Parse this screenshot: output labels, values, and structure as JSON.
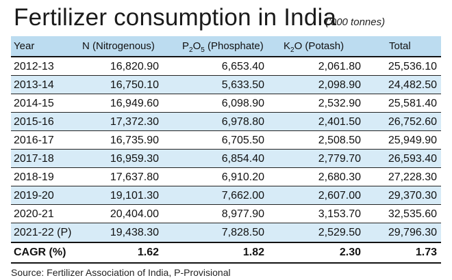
{
  "title": "Fertilizer consumption in India",
  "unit_note": "('000 tonnes)",
  "headers": {
    "year": "Year",
    "n": "N (Nitrogenous)",
    "p_pre": "P",
    "p_sub1": "2",
    "p_mid": "O",
    "p_sub2": "5",
    "p_post": " (Phosphate)",
    "k_pre": "K",
    "k_sub": "2",
    "k_post": "O (Potash)",
    "total": "Total"
  },
  "rows": [
    {
      "year": "2012-13",
      "n": "16,820.90",
      "p": "6,653.40",
      "k": "2,061.80",
      "total": "25,536.10"
    },
    {
      "year": "2013-14",
      "n": "16,750.10",
      "p": "5,633.50",
      "k": "2,098.90",
      "total": "24,482.50"
    },
    {
      "year": "2014-15",
      "n": "16,949.60",
      "p": "6,098.90",
      "k": "2,532.90",
      "total": "25,581.40"
    },
    {
      "year": "2015-16",
      "n": "17,372.30",
      "p": "6,978.80",
      "k": "2,401.50",
      "total": "26,752.60"
    },
    {
      "year": "2016-17",
      "n": "16,735.90",
      "p": "6,705.50",
      "k": "2,508.50",
      "total": "25,949.90"
    },
    {
      "year": "2017-18",
      "n": "16,959.30",
      "p": "6,854.40",
      "k": "2,779.70",
      "total": "26,593.40"
    },
    {
      "year": "2018-19",
      "n": "17,637.80",
      "p": "6,910.20",
      "k": "2,680.30",
      "total": "27,228.30"
    },
    {
      "year": "2019-20",
      "n": "19,101.30",
      "p": "7,662.00",
      "k": "2,607.00",
      "total": "29,370.30"
    },
    {
      "year": "2020-21",
      "n": "20,404.00",
      "p": "8,977.90",
      "k": "3,153.70",
      "total": "32,535.60"
    },
    {
      "year": "2021-22 (P)",
      "n": "19,438.30",
      "p": "7,828.50",
      "k": "2,529.50",
      "total": "29,796.30"
    }
  ],
  "cagr": {
    "label": "CAGR (%)",
    "n": "1.62",
    "p": "1.82",
    "k": "2.30",
    "total": "1.73"
  },
  "source": "Source: Fertilizer Association of India, P-Provisional",
  "colors": {
    "header_bg": "#bcdcf0",
    "shade_bg": "#d7ebf7",
    "rule": "#111111"
  },
  "chart_data": {
    "type": "table",
    "title": "Fertilizer consumption in India",
    "columns": [
      "Year",
      "N (Nitrogenous)",
      "P2O5 (Phosphate)",
      "K2O (Potash)",
      "Total"
    ],
    "rows": [
      [
        "2012-13",
        16820.9,
        6653.4,
        2061.8,
        25536.1
      ],
      [
        "2013-14",
        16750.1,
        5633.5,
        2098.9,
        24482.5
      ],
      [
        "2014-15",
        16949.6,
        6098.9,
        2532.9,
        25581.4
      ],
      [
        "2015-16",
        17372.3,
        6978.8,
        2401.5,
        26752.6
      ],
      [
        "2016-17",
        16735.9,
        6705.5,
        2508.5,
        25949.9
      ],
      [
        "2017-18",
        16959.3,
        6854.4,
        2779.7,
        26593.4
      ],
      [
        "2018-19",
        17637.8,
        6910.2,
        2680.3,
        27228.3
      ],
      [
        "2019-20",
        19101.3,
        7662.0,
        2607.0,
        29370.3
      ],
      [
        "2020-21",
        20404.0,
        8977.9,
        3153.7,
        32535.6
      ],
      [
        "2021-22 (P)",
        19438.3,
        7828.5,
        2529.5,
        29796.3
      ],
      [
        "CAGR (%)",
        1.62,
        1.82,
        2.3,
        1.73
      ]
    ]
  }
}
